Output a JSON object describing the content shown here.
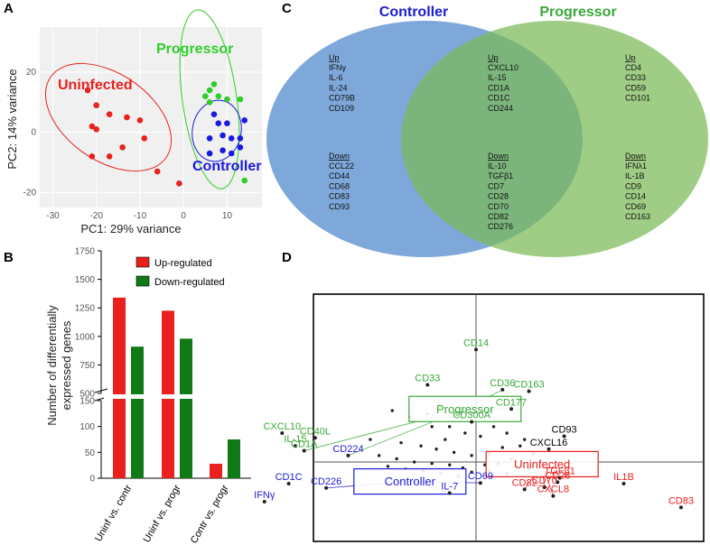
{
  "panels": {
    "a": "A",
    "b": "B",
    "c": "C",
    "d": "D"
  },
  "chart_data": [
    {
      "type": "scatter",
      "panel": "A",
      "xlabel": "PC1: 29% variance",
      "ylabel": "PC2: 14% variance",
      "xlim": [
        -33,
        18
      ],
      "ylim": [
        -25,
        35
      ],
      "xticks": [
        -30,
        -20,
        -10,
        0,
        10
      ],
      "yticks": [
        -20,
        0,
        20
      ],
      "groups": [
        {
          "name": "Uninfected",
          "color": "#e8201e",
          "points": [
            [
              -22,
              14
            ],
            [
              -20,
              9
            ],
            [
              -17,
              6
            ],
            [
              -13,
              5
            ],
            [
              -10,
              4
            ],
            [
              -21,
              2
            ],
            [
              -20,
              1
            ],
            [
              -14,
              -5
            ],
            [
              -9,
              -2
            ],
            [
              -21,
              -8
            ],
            [
              -17,
              -8
            ],
            [
              -6,
              -13
            ],
            [
              -1,
              -17
            ]
          ]
        },
        {
          "name": "Progressor",
          "color": "#2fcd2a",
          "points": [
            [
              7,
              16
            ],
            [
              6,
              14
            ],
            [
              5,
              12
            ],
            [
              8,
              12
            ],
            [
              10,
              11
            ],
            [
              13,
              11
            ],
            [
              6,
              10
            ],
            [
              14,
              -16
            ]
          ]
        },
        {
          "name": "Controller",
          "color": "#1a1adf",
          "points": [
            [
              7,
              6
            ],
            [
              8,
              3
            ],
            [
              10,
              3
            ],
            [
              14,
              4
            ],
            [
              6,
              -2
            ],
            [
              9,
              -1
            ],
            [
              11,
              -2
            ],
            [
              13,
              -2
            ],
            [
              9,
              -6
            ],
            [
              11,
              -7
            ],
            [
              13,
              -5
            ],
            [
              6,
              -7
            ]
          ]
        }
      ]
    },
    {
      "type": "bar",
      "panel": "B",
      "ylabel": [
        "Number of differentially",
        "expressed genes"
      ],
      "categories": [
        "Uninf vs. contr",
        "Uninf vs. progr",
        "Contr vs. progr"
      ],
      "series": [
        {
          "name": "Up-regulated",
          "color": "#e8201e",
          "values": [
            1340,
            1225,
            28
          ]
        },
        {
          "name": "Down-regulated",
          "color": "#0f7a16",
          "values": [
            910,
            980,
            75
          ]
        }
      ],
      "axis_break": {
        "lower_ylim": [
          0,
          150
        ],
        "upper_ylim": [
          500,
          1750
        ]
      },
      "yticks_lower": [
        0,
        50,
        100,
        150
      ],
      "yticks_upper": [
        500,
        750,
        1000,
        1250,
        1500,
        1750
      ]
    },
    {
      "type": "venn",
      "panel": "C",
      "sets": [
        {
          "name": "Controller",
          "color": "#1c1cd6"
        },
        {
          "name": "Progressor",
          "color": "#3aa838"
        }
      ],
      "regions": {
        "controller_only": {
          "up_header": "Up",
          "up": [
            "IFNγ",
            "IL-6",
            "IL-24",
            "CD79B",
            "CD109"
          ],
          "down_header": "Down",
          "down": [
            "CCL22",
            "CD44",
            "CD68",
            "CD83",
            "CD93"
          ]
        },
        "shared": {
          "up_header": "Up",
          "up": [
            "CXCL10",
            "IL-15",
            "CD1A",
            "CD1C",
            "CD244"
          ],
          "down_header": "Down",
          "down": [
            "IL-10",
            "TGFβ1",
            "CD7",
            "CD28",
            "CD70",
            "CD82",
            "CD276"
          ]
        },
        "progressor_only": {
          "up_header": "Up",
          "up": [
            "CD4",
            "CD33",
            "CD59",
            "CD101"
          ],
          "down_header": "Down",
          "down": [
            "IFNλ1",
            "IL-1B",
            "CD9",
            "CD14",
            "CD69",
            "CD163"
          ]
        }
      }
    },
    {
      "type": "biplot",
      "panel": "D",
      "xlim": [
        -1,
        1
      ],
      "ylim": [
        -1,
        1
      ],
      "group_boxes": [
        {
          "name": "Progressor",
          "color": "#3aa838",
          "x": -0.05,
          "y": 0.33
        },
        {
          "name": "Uninfected",
          "color": "#e8201e",
          "x": 0.3,
          "y": -0.03
        },
        {
          "name": "Controller",
          "color": "#1c1cd6",
          "x": -0.3,
          "y": -0.27
        }
      ],
      "genes": [
        {
          "name": "CD14",
          "color": "#3aa838",
          "x": 0.0,
          "y": 0.7
        },
        {
          "name": "CD33",
          "color": "#3aa838",
          "x": -0.22,
          "y": 0.48
        },
        {
          "name": "CD36",
          "color": "#3aa838",
          "x": 0.12,
          "y": 0.45
        },
        {
          "name": "CD163",
          "color": "#3aa838",
          "x": 0.24,
          "y": 0.44
        },
        {
          "name": "CD177",
          "color": "#3aa838",
          "x": 0.16,
          "y": 0.33
        },
        {
          "name": "CD300A",
          "color": "#3aa838",
          "x": -0.02,
          "y": 0.25
        },
        {
          "name": "CXCL10",
          "color": "#3aa838",
          "x": -0.88,
          "y": 0.18
        },
        {
          "name": "CD40L",
          "color": "#3aa838",
          "x": -0.73,
          "y": 0.15
        },
        {
          "name": "IL-15",
          "color": "#3aa838",
          "x": -0.82,
          "y": 0.1
        },
        {
          "name": "CD1A",
          "color": "#3aa838",
          "x": -0.78,
          "y": 0.07
        },
        {
          "name": "CD224",
          "color": "#1c1cd6",
          "x": -0.58,
          "y": 0.04
        },
        {
          "name": "CXCL16",
          "color": "#000000",
          "x": 0.33,
          "y": 0.08
        },
        {
          "name": "CD93",
          "color": "#000000",
          "x": 0.4,
          "y": 0.16
        },
        {
          "name": "CD1C",
          "color": "#1c1cd6",
          "x": -0.85,
          "y": -0.3
        },
        {
          "name": "CD226",
          "color": "#1c1cd6",
          "x": -0.68,
          "y": -0.36
        },
        {
          "name": "CD69",
          "color": "#1c1cd6",
          "x": 0.02,
          "y": -0.29
        },
        {
          "name": "IL-7",
          "color": "#1c1cd6",
          "x": -0.12,
          "y": -0.43
        },
        {
          "name": "IFNγ",
          "color": "#1c1cd6",
          "x": -0.96,
          "y": -0.55
        },
        {
          "name": "TGFβ1",
          "color": "#e8201e",
          "x": 0.38,
          "y": -0.22
        },
        {
          "name": "CD28",
          "color": "#e8201e",
          "x": 0.37,
          "y": -0.28
        },
        {
          "name": "CD82",
          "color": "#e8201e",
          "x": 0.22,
          "y": -0.38
        },
        {
          "name": "CD70",
          "color": "#e8201e",
          "x": 0.31,
          "y": -0.35
        },
        {
          "name": "CXCL8",
          "color": "#e8201e",
          "x": 0.35,
          "y": -0.47
        },
        {
          "name": "IL1B",
          "color": "#e8201e",
          "x": 0.67,
          "y": -0.3
        },
        {
          "name": "CD83",
          "color": "#e8201e",
          "x": 0.93,
          "y": -0.63
        }
      ]
    }
  ]
}
